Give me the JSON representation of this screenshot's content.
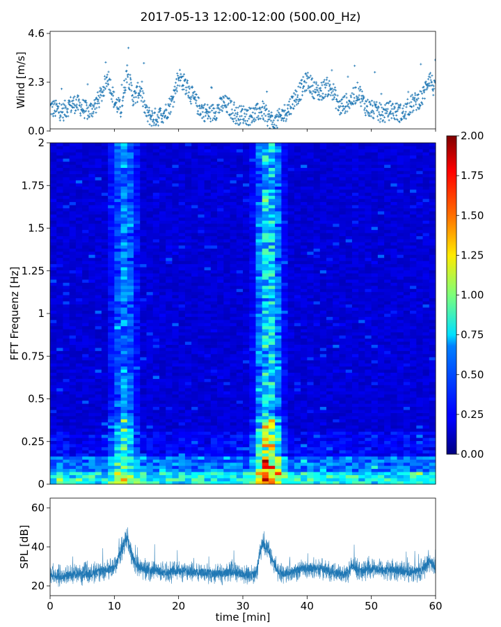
{
  "title": "2017-05-13 12:00-12:00 (500.00_Hz)",
  "colors": {
    "series": "#1f77b4",
    "axis": "#000000",
    "background": "#ffffff"
  },
  "chart_data": [
    {
      "id": "wind",
      "type": "scatter",
      "ylabel": "Wind [m/s]",
      "xlim": [
        0,
        60
      ],
      "ylim": [
        0,
        4.6
      ],
      "yticks": [
        0.0,
        2.3,
        4.6
      ],
      "ytick_labels": [
        "0.0",
        "2.3",
        "4.6"
      ],
      "marker": "+",
      "x": [
        0,
        1,
        2,
        3,
        4,
        5,
        6,
        7,
        8,
        9,
        10,
        11,
        12,
        13,
        14,
        15,
        16,
        17,
        18,
        19,
        20,
        21,
        22,
        23,
        24,
        25,
        26,
        27,
        28,
        29,
        30,
        31,
        32,
        33,
        34,
        35,
        36,
        37,
        38,
        39,
        40,
        41,
        42,
        43,
        44,
        45,
        46,
        47,
        48,
        49,
        50,
        51,
        52,
        53,
        54,
        55,
        56,
        57,
        58,
        59,
        60
      ],
      "y": [
        1.1,
        1.0,
        0.9,
        1.2,
        1.3,
        1.1,
        0.9,
        1.2,
        1.7,
        2.6,
        1.4,
        1.0,
        2.8,
        1.5,
        2.0,
        0.8,
        0.6,
        0.7,
        0.9,
        1.4,
        2.6,
        2.2,
        1.7,
        1.2,
        0.9,
        0.8,
        1.0,
        1.3,
        1.1,
        0.7,
        0.8,
        0.7,
        0.8,
        1.0,
        0.6,
        0.4,
        0.7,
        1.0,
        1.5,
        1.9,
        2.4,
        2.0,
        1.8,
        2.1,
        1.9,
        1.1,
        1.3,
        1.5,
        1.9,
        1.2,
        1.0,
        0.9,
        0.8,
        1.0,
        0.9,
        0.8,
        1.2,
        1.4,
        1.6,
        2.6,
        1.8
      ]
    },
    {
      "id": "spectrogram",
      "type": "heatmap",
      "ylabel": "FFT Frequenz [Hz]",
      "xlim": [
        0,
        60
      ],
      "ylim": [
        0,
        2
      ],
      "yticks": [
        0,
        0.25,
        0.5,
        0.75,
        1,
        1.25,
        1.5,
        1.75,
        2
      ],
      "ytick_labels": [
        "0",
        "0.25",
        "0.5",
        "0.75",
        "1",
        "1.25",
        "1.5",
        "1.75",
        "2"
      ],
      "colormap": "jet",
      "vmin": 0.0,
      "vmax": 2.0,
      "colorbar_ticks": [
        "0.00",
        "0.25",
        "0.50",
        "0.75",
        "1.00",
        "1.25",
        "1.50",
        "1.75",
        "2.00"
      ],
      "band_centers_min": [
        11.5,
        34.0
      ],
      "band_peak_intensity": [
        0.9,
        1.6
      ]
    },
    {
      "id": "spl",
      "type": "line",
      "ylabel": "SPL [dB]",
      "xlabel": "time [min]",
      "xlim": [
        0,
        60
      ],
      "ylim": [
        15,
        65
      ],
      "yticks": [
        20,
        40,
        60
      ],
      "xticks": [
        0,
        10,
        20,
        30,
        40,
        50,
        60
      ],
      "xtick_labels": [
        "0",
        "10",
        "20",
        "30",
        "40",
        "50",
        "60"
      ],
      "x": [
        0,
        2,
        4,
        6,
        8,
        10,
        11,
        12,
        13,
        14,
        16,
        18,
        20,
        22,
        24,
        26,
        28,
        30,
        32,
        33,
        34,
        35,
        36,
        38,
        40,
        42,
        44,
        46,
        47,
        48,
        50,
        52,
        54,
        56,
        58,
        59,
        60
      ],
      "y": [
        25,
        25,
        26,
        26,
        28,
        29,
        38,
        45,
        33,
        29,
        28,
        27,
        28,
        27,
        27,
        26,
        27,
        26,
        26,
        42,
        38,
        30,
        26,
        28,
        29,
        29,
        27,
        26,
        30,
        28,
        29,
        28,
        28,
        27,
        28,
        33,
        29
      ]
    }
  ]
}
